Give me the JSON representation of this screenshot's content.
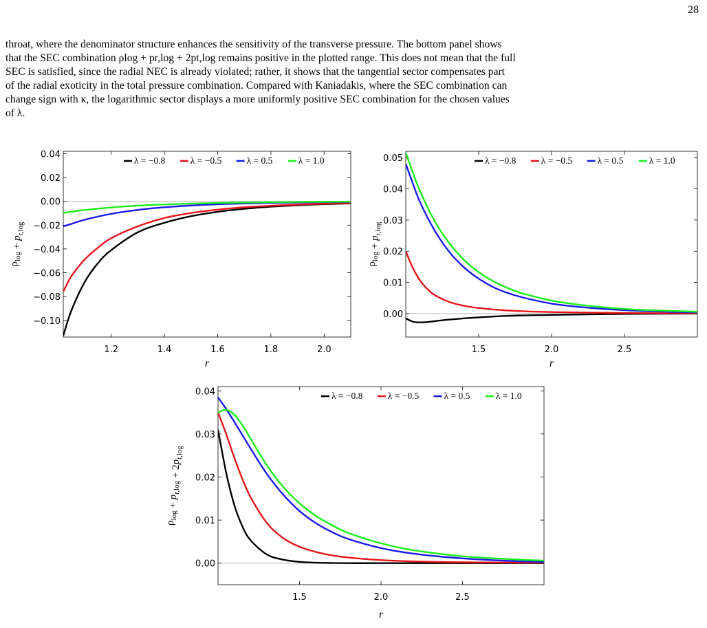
{
  "page_number": "28",
  "paragraph_lines": [
    "throat, where the denominator structure enhances the sensitivity of the transverse pressure. The bottom panel shows",
    "that the SEC combination ρlog + pr,log + 2pt,log remains positive in the plotted range. This does not mean that the full",
    "SEC is satisfied, since the radial NEC is already violated; rather, it shows that the tangential sector compensates part",
    "of the radial exoticity in the total pressure combination. Compared with Kaniadakis, where the SEC combination can",
    "change sign with κ, the logarithmic sector displays a more uniformly positive SEC combination for the chosen values",
    "of λ."
  ],
  "colors": {
    "λ=-0.8": "#000000",
    "λ=-0.5": "#e8141a",
    "λ=0.5": "#1a1ae8",
    "λ=1.0": "#1aee1a",
    "zero_line": "#b4b4b4"
  },
  "chart_data": [
    {
      "type": "line",
      "xlabel": "r",
      "ylabel": "ρlog + pr,log",
      "xlim": [
        1.02,
        2.1
      ],
      "ylim": [
        -0.114,
        0.042
      ],
      "xticks": [
        1.2,
        1.4,
        1.6,
        1.8,
        2.0
      ],
      "xtick_labels": [
        "1.2",
        "1.4",
        "1.6",
        "1.8",
        "2.0"
      ],
      "yticks": [
        0.04,
        0.02,
        0.0,
        -0.02,
        -0.04,
        -0.06,
        -0.08,
        -0.1
      ],
      "ytick_labels": [
        "0.04",
        "0.02",
        "0.00",
        "−0.02",
        "−0.04",
        "−0.06",
        "−0.08",
        "−0.10"
      ],
      "legend_position": "top-right",
      "grid": false,
      "series": [
        {
          "name": "λ = −0.8",
          "color": "#000000",
          "x": [
            1.02,
            1.05,
            1.1,
            1.15,
            1.2,
            1.3,
            1.4,
            1.5,
            1.6,
            1.7,
            1.8,
            1.9,
            2.0,
            2.1
          ],
          "y": [
            -0.113,
            -0.092,
            -0.068,
            -0.052,
            -0.041,
            -0.026,
            -0.018,
            -0.0125,
            -0.0088,
            -0.0063,
            -0.0045,
            -0.0033,
            -0.0024,
            -0.0018
          ]
        },
        {
          "name": "λ = −0.5",
          "color": "#e8141a",
          "x": [
            1.02,
            1.05,
            1.1,
            1.15,
            1.2,
            1.3,
            1.4,
            1.5,
            1.6,
            1.7,
            1.8,
            1.9,
            2.0,
            2.1
          ],
          "y": [
            -0.076,
            -0.063,
            -0.049,
            -0.039,
            -0.031,
            -0.021,
            -0.014,
            -0.0098,
            -0.007,
            -0.005,
            -0.0037,
            -0.0027,
            -0.002,
            -0.0015
          ]
        },
        {
          "name": "λ = 0.5",
          "color": "#1a1ae8",
          "x": [
            1.02,
            1.05,
            1.1,
            1.2,
            1.3,
            1.4,
            1.5,
            1.6,
            1.7,
            1.8,
            1.9,
            2.0,
            2.1
          ],
          "y": [
            -0.021,
            -0.019,
            -0.0155,
            -0.0105,
            -0.0072,
            -0.005,
            -0.0035,
            -0.0025,
            -0.0018,
            -0.0013,
            -0.001,
            -0.0007,
            -0.0005
          ]
        },
        {
          "name": "λ = 1.0",
          "color": "#1aee1a",
          "x": [
            1.02,
            1.05,
            1.1,
            1.2,
            1.3,
            1.4,
            1.5,
            1.6,
            1.7,
            1.8,
            1.9,
            2.0,
            2.1
          ],
          "y": [
            -0.0098,
            -0.0088,
            -0.0073,
            -0.0051,
            -0.0036,
            -0.0026,
            -0.0019,
            -0.0014,
            -0.001,
            -0.0007,
            -0.0005,
            -0.0004,
            -0.0003
          ]
        }
      ]
    },
    {
      "type": "line",
      "xlabel": "r",
      "ylabel": "ρlog + pt,log",
      "xlim": [
        1.0,
        3.0
      ],
      "ylim": [
        -0.0075,
        0.052
      ],
      "xticks": [
        1.5,
        2.0,
        2.5
      ],
      "xtick_labels": [
        "1.5",
        "2.0",
        "2.5"
      ],
      "yticks": [
        0.05,
        0.04,
        0.03,
        0.02,
        0.01,
        0.0
      ],
      "ytick_labels": [
        "0.05",
        "0.04",
        "0.03",
        "0.02",
        "0.01",
        "0.00"
      ],
      "legend_position": "top-right",
      "grid": false,
      "series": [
        {
          "name": "λ = −0.8",
          "color": "#000000",
          "x": [
            1.0,
            1.05,
            1.1,
            1.15,
            1.2,
            1.3,
            1.4,
            1.5,
            1.7,
            2.0,
            2.5,
            3.0
          ],
          "y": [
            -0.0015,
            -0.0026,
            -0.0028,
            -0.0027,
            -0.0024,
            -0.0019,
            -0.0015,
            -0.0012,
            -0.0007,
            -0.0004,
            -0.0001,
            0.0
          ]
        },
        {
          "name": "λ = −0.5",
          "color": "#e8141a",
          "x": [
            1.0,
            1.05,
            1.1,
            1.15,
            1.2,
            1.3,
            1.4,
            1.5,
            1.7,
            2.0,
            2.5,
            3.0
          ],
          "y": [
            0.02,
            0.0145,
            0.0105,
            0.0078,
            0.0059,
            0.0037,
            0.0025,
            0.0018,
            0.001,
            0.0005,
            0.0002,
            0.0001
          ]
        },
        {
          "name": "λ = 0.5",
          "color": "#1a1ae8",
          "x": [
            1.0,
            1.05,
            1.1,
            1.2,
            1.3,
            1.4,
            1.5,
            1.6,
            1.7,
            1.8,
            2.0,
            2.2,
            2.5,
            2.8,
            3.0
          ],
          "y": [
            0.048,
            0.0415,
            0.0355,
            0.0265,
            0.0197,
            0.0148,
            0.0112,
            0.0085,
            0.0066,
            0.0052,
            0.0032,
            0.0021,
            0.0011,
            0.0006,
            0.0004
          ]
        },
        {
          "name": "λ = 1.0",
          "color": "#1aee1a",
          "x": [
            1.0,
            1.05,
            1.1,
            1.2,
            1.3,
            1.4,
            1.5,
            1.6,
            1.7,
            1.8,
            2.0,
            2.2,
            2.5,
            2.8,
            3.0
          ],
          "y": [
            0.0515,
            0.045,
            0.039,
            0.0295,
            0.0225,
            0.0172,
            0.0133,
            0.0104,
            0.0082,
            0.0065,
            0.0042,
            0.0028,
            0.0015,
            0.0009,
            0.0006
          ]
        }
      ]
    },
    {
      "type": "line",
      "xlabel": "r",
      "ylabel": "ρlog + pr,log + 2pt,log",
      "xlim": [
        1.0,
        3.0
      ],
      "ylim": [
        -0.005,
        0.041
      ],
      "xticks": [
        1.5,
        2.0,
        2.5
      ],
      "xtick_labels": [
        "1.5",
        "2.0",
        "2.5"
      ],
      "yticks": [
        0.04,
        0.03,
        0.02,
        0.01,
        0.0
      ],
      "ytick_labels": [
        "0.04",
        "0.03",
        "0.02",
        "0.01",
        "0.00"
      ],
      "legend_position": "top-right",
      "grid": false,
      "series": [
        {
          "name": "λ = −0.8",
          "color": "#000000",
          "x": [
            1.0,
            1.05,
            1.1,
            1.15,
            1.2,
            1.3,
            1.4,
            1.5,
            1.6,
            1.8,
            2.0,
            2.5,
            3.0
          ],
          "y": [
            0.031,
            0.021,
            0.0135,
            0.0085,
            0.0053,
            0.002,
            0.0008,
            0.0003,
            0.0001,
            0.0,
            0.0,
            0.0,
            0.0
          ]
        },
        {
          "name": "λ = −0.5",
          "color": "#e8141a",
          "x": [
            1.0,
            1.05,
            1.1,
            1.15,
            1.2,
            1.3,
            1.4,
            1.5,
            1.6,
            1.7,
            1.8,
            2.0,
            2.2,
            2.5,
            3.0
          ],
          "y": [
            0.035,
            0.03,
            0.0245,
            0.0195,
            0.0153,
            0.0093,
            0.0058,
            0.0038,
            0.0026,
            0.0018,
            0.0013,
            0.0007,
            0.0004,
            0.0002,
            0.0001
          ]
        },
        {
          "name": "λ = 0.5",
          "color": "#1a1ae8",
          "x": [
            1.0,
            1.05,
            1.1,
            1.15,
            1.2,
            1.3,
            1.4,
            1.5,
            1.6,
            1.7,
            1.8,
            2.0,
            2.2,
            2.5,
            2.8,
            3.0
          ],
          "y": [
            0.0385,
            0.0358,
            0.0328,
            0.0297,
            0.0266,
            0.0207,
            0.0159,
            0.0121,
            0.0093,
            0.0072,
            0.0056,
            0.0035,
            0.0022,
            0.0011,
            0.0005,
            0.0003
          ]
        },
        {
          "name": "λ = 1.0",
          "color": "#1aee1a",
          "x": [
            1.0,
            1.05,
            1.1,
            1.15,
            1.2,
            1.3,
            1.4,
            1.5,
            1.6,
            1.7,
            1.8,
            2.0,
            2.2,
            2.5,
            2.8,
            3.0
          ],
          "y": [
            0.035,
            0.0356,
            0.0345,
            0.032,
            0.0289,
            0.0227,
            0.0177,
            0.0139,
            0.011,
            0.0088,
            0.007,
            0.0046,
            0.003,
            0.0016,
            0.0009,
            0.0006
          ]
        }
      ]
    }
  ]
}
